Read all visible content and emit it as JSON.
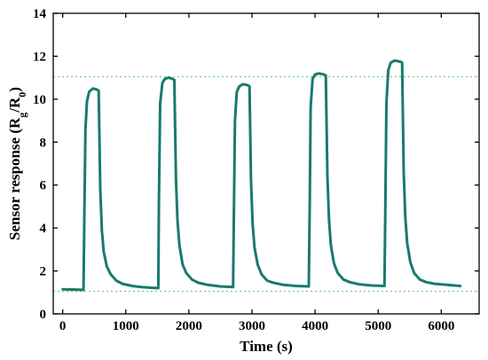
{
  "chart_data": {
    "type": "line",
    "title": "",
    "xlabel": "Time (s)",
    "ylabel": "Sensor response (R",
    "ylabel_parts": {
      "g_sub": "g",
      "slash": "/R",
      "zero_sub": "0",
      "close": ")"
    },
    "xlim": [
      -150,
      6600
    ],
    "ylim": [
      0,
      14
    ],
    "x_ticks": [
      0,
      1000,
      2000,
      3000,
      4000,
      5000,
      6000
    ],
    "y_ticks": [
      0,
      2,
      4,
      6,
      8,
      10,
      12,
      14
    ],
    "grid": false,
    "reference_lines": [
      {
        "axis": "y",
        "value": 11.05,
        "style": "dotted",
        "color": "#66cc66"
      },
      {
        "axis": "y",
        "value": 1.05,
        "style": "dotted",
        "color": "#66cc66"
      }
    ],
    "series": [
      {
        "color": "#1a7a6e",
        "x": [
          0,
          330,
          345,
          360,
          385,
          420,
          480,
          540,
          570,
          595,
          620,
          650,
          700,
          760,
          850,
          950,
          1100,
          1250,
          1400,
          1515,
          1525,
          1545,
          1580,
          1620,
          1680,
          1740,
          1770,
          1795,
          1820,
          1850,
          1900,
          1960,
          2050,
          2150,
          2300,
          2500,
          2700,
          2715,
          2730,
          2760,
          2800,
          2860,
          2930,
          2960,
          2985,
          3010,
          3040,
          3090,
          3150,
          3240,
          3340,
          3500,
          3700,
          3900,
          3915,
          3930,
          3960,
          4000,
          4060,
          4140,
          4170,
          4195,
          4220,
          4250,
          4300,
          4360,
          4450,
          4550,
          4700,
          4900,
          5100,
          5115,
          5130,
          5160,
          5200,
          5260,
          5350,
          5380,
          5405,
          5430,
          5460,
          5510,
          5570,
          5660,
          5760,
          5900,
          6100,
          6300
        ],
        "y": [
          1.15,
          1.12,
          5.0,
          8.6,
          9.9,
          10.35,
          10.5,
          10.45,
          10.4,
          5.8,
          3.9,
          2.9,
          2.2,
          1.85,
          1.55,
          1.4,
          1.3,
          1.25,
          1.22,
          1.2,
          5.2,
          9.8,
          10.75,
          10.95,
          11.0,
          10.95,
          10.9,
          6.3,
          4.3,
          3.2,
          2.3,
          1.9,
          1.6,
          1.45,
          1.35,
          1.28,
          1.25,
          5.0,
          9.0,
          10.35,
          10.6,
          10.7,
          10.65,
          10.6,
          6.2,
          4.2,
          3.1,
          2.3,
          1.85,
          1.55,
          1.45,
          1.35,
          1.3,
          1.28,
          5.1,
          9.6,
          10.95,
          11.15,
          11.2,
          11.15,
          11.1,
          6.4,
          4.4,
          3.2,
          2.35,
          1.9,
          1.6,
          1.48,
          1.38,
          1.32,
          1.3,
          5.3,
          9.8,
          11.35,
          11.7,
          11.8,
          11.75,
          11.7,
          6.6,
          4.5,
          3.3,
          2.4,
          1.9,
          1.6,
          1.48,
          1.4,
          1.35,
          1.3
        ]
      }
    ]
  }
}
